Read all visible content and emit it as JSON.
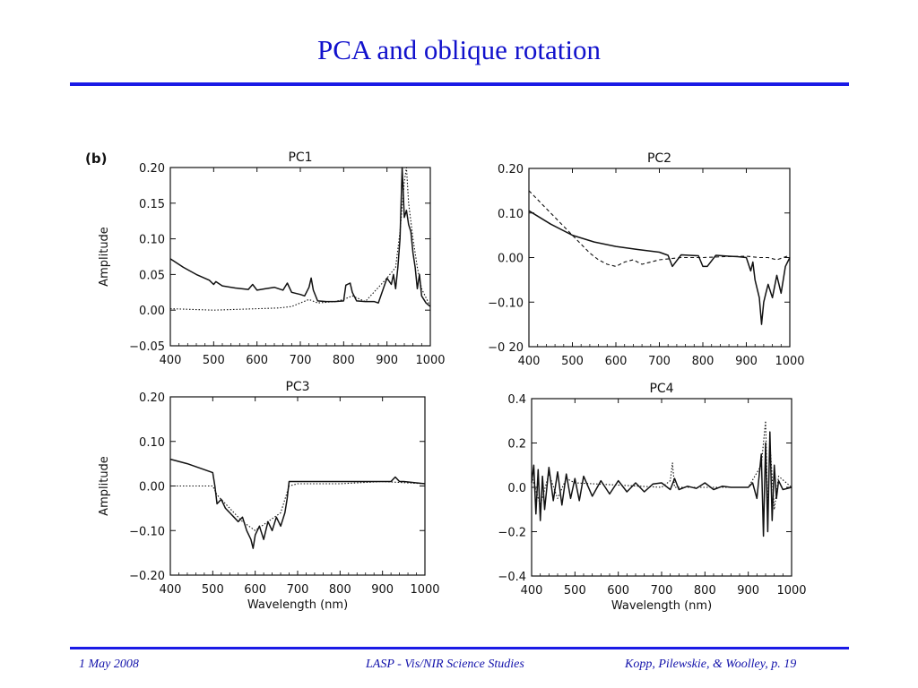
{
  "slide": {
    "title": "PCA and oblique rotation",
    "footer_left": "1 May 2008",
    "footer_center": "LASP - Vis/NIR Science Studies",
    "footer_right": "Kopp, Pilewskie, & Woolley, p. 19"
  },
  "figure": {
    "panel_label": "(b)"
  },
  "colors": {
    "title": "#1111cc",
    "rule": "#1a1ae6",
    "footer": "#1111aa"
  },
  "chart_data": [
    {
      "type": "line",
      "title": "PC1",
      "xlabel": "",
      "ylabel": "Amplitude",
      "xlim": [
        400,
        1000
      ],
      "ylim": [
        -0.05,
        0.2
      ],
      "xticks": [
        400,
        500,
        600,
        700,
        800,
        900,
        1000
      ],
      "yticks": [
        -0.05,
        0.0,
        0.05,
        0.1,
        0.15,
        0.2
      ],
      "ytick_labels": [
        "−0.05",
        "0.00",
        "0.05",
        "0.10",
        "0.15",
        "0.20"
      ],
      "series": [
        {
          "style": "solid",
          "x": [
            400,
            430,
            460,
            490,
            500,
            505,
            520,
            550,
            580,
            590,
            600,
            620,
            640,
            660,
            670,
            680,
            700,
            710,
            720,
            725,
            730,
            740,
            760,
            780,
            800,
            805,
            815,
            820,
            830,
            850,
            870,
            880,
            900,
            910,
            915,
            920,
            925,
            930,
            935,
            940,
            945,
            950,
            955,
            960,
            965,
            970,
            975,
            980,
            990,
            1000
          ],
          "y": [
            0.072,
            0.06,
            0.05,
            0.042,
            0.036,
            0.04,
            0.034,
            0.031,
            0.029,
            0.036,
            0.028,
            0.03,
            0.032,
            0.028,
            0.038,
            0.025,
            0.022,
            0.02,
            0.032,
            0.045,
            0.028,
            0.013,
            0.012,
            0.012,
            0.013,
            0.035,
            0.038,
            0.025,
            0.013,
            0.012,
            0.012,
            0.01,
            0.045,
            0.036,
            0.05,
            0.03,
            0.06,
            0.1,
            0.2,
            0.13,
            0.14,
            0.12,
            0.11,
            0.08,
            0.06,
            0.03,
            0.05,
            0.02,
            0.01,
            0.005
          ]
        },
        {
          "style": "dotted",
          "x": [
            400,
            450,
            500,
            550,
            600,
            650,
            680,
            700,
            720,
            740,
            780,
            800,
            820,
            850,
            900,
            920,
            930,
            940,
            945,
            950,
            960,
            970,
            980,
            1000
          ],
          "y": [
            0.002,
            0.001,
            0.0,
            0.001,
            0.002,
            0.003,
            0.005,
            0.01,
            0.015,
            0.01,
            0.012,
            0.015,
            0.02,
            0.012,
            0.045,
            0.06,
            0.11,
            0.18,
            0.2,
            0.15,
            0.1,
            0.06,
            0.03,
            0.005
          ]
        }
      ]
    },
    {
      "type": "line",
      "title": "PC2",
      "xlabel": "",
      "ylabel": "",
      "xlim": [
        400,
        1000
      ],
      "ylim": [
        -0.2,
        0.2
      ],
      "xticks": [
        400,
        500,
        600,
        700,
        800,
        900,
        1000
      ],
      "yticks": [
        -0.2,
        -0.1,
        0.0,
        0.1,
        0.2
      ],
      "ytick_labels": [
        "−0 20",
        "−0.10",
        "0.00",
        "0.10",
        "0.20"
      ],
      "series": [
        {
          "style": "solid",
          "x": [
            400,
            450,
            500,
            550,
            600,
            650,
            700,
            720,
            730,
            750,
            790,
            800,
            810,
            830,
            860,
            880,
            900,
            910,
            915,
            920,
            930,
            935,
            940,
            945,
            950,
            960,
            970,
            980,
            990,
            1000
          ],
          "y": [
            0.105,
            0.075,
            0.05,
            0.035,
            0.025,
            0.018,
            0.012,
            0.005,
            -0.02,
            0.006,
            0.004,
            -0.02,
            -0.02,
            0.005,
            0.003,
            0.002,
            0.0,
            -0.03,
            -0.01,
            -0.05,
            -0.09,
            -0.15,
            -0.1,
            -0.08,
            -0.06,
            -0.09,
            -0.04,
            -0.08,
            -0.02,
            0.0
          ]
        },
        {
          "style": "dashed",
          "x": [
            400,
            430,
            460,
            500,
            520,
            540,
            560,
            580,
            600,
            620,
            640,
            660,
            700,
            750,
            800,
            850,
            900,
            930,
            950,
            970,
            1000
          ],
          "y": [
            0.15,
            0.12,
            0.09,
            0.05,
            0.03,
            0.01,
            -0.005,
            -0.015,
            -0.02,
            -0.01,
            -0.005,
            -0.015,
            -0.005,
            0.0,
            0.0,
            0.002,
            0.003,
            0.0,
            0.0,
            -0.005,
            0.005
          ]
        }
      ]
    },
    {
      "type": "line",
      "title": "PC3",
      "xlabel": "Wavelength (nm)",
      "ylabel": "Amplitude",
      "xlim": [
        400,
        1000
      ],
      "ylim": [
        -0.2,
        0.2
      ],
      "xticks": [
        400,
        500,
        600,
        700,
        800,
        900,
        1000
      ],
      "yticks": [
        -0.2,
        -0.1,
        0.0,
        0.1,
        0.2
      ],
      "ytick_labels": [
        "−0.20",
        "−0.10",
        "0.00",
        "0.10",
        "0.20"
      ],
      "series": [
        {
          "style": "solid",
          "x": [
            400,
            440,
            470,
            500,
            505,
            510,
            520,
            530,
            540,
            550,
            560,
            570,
            580,
            590,
            595,
            600,
            610,
            620,
            630,
            640,
            650,
            660,
            670,
            675,
            680,
            700,
            750,
            800,
            850,
            900,
            920,
            930,
            940,
            950,
            1000
          ],
          "y": [
            0.06,
            0.05,
            0.04,
            0.03,
            0.0,
            -0.04,
            -0.03,
            -0.05,
            -0.06,
            -0.07,
            -0.08,
            -0.07,
            -0.1,
            -0.12,
            -0.14,
            -0.11,
            -0.09,
            -0.12,
            -0.08,
            -0.1,
            -0.07,
            -0.09,
            -0.06,
            -0.03,
            0.01,
            0.01,
            0.01,
            0.01,
            0.01,
            0.01,
            0.01,
            0.02,
            0.01,
            0.01,
            0.005
          ]
        },
        {
          "style": "dotted",
          "x": [
            400,
            450,
            500,
            510,
            540,
            570,
            600,
            630,
            660,
            680,
            700,
            800,
            900,
            1000
          ],
          "y": [
            0.0,
            0.0,
            0.0,
            -0.02,
            -0.05,
            -0.08,
            -0.1,
            -0.08,
            -0.06,
            0.0,
            0.005,
            0.005,
            0.01,
            0.005
          ]
        }
      ]
    },
    {
      "type": "line",
      "title": "PC4",
      "xlabel": "Wavelength (nm)",
      "ylabel": "",
      "xlim": [
        400,
        1000
      ],
      "ylim": [
        -0.4,
        0.4
      ],
      "xticks": [
        400,
        500,
        600,
        700,
        800,
        900,
        1000
      ],
      "yticks": [
        -0.4,
        -0.2,
        0.0,
        0.2,
        0.4
      ],
      "ytick_labels": [
        "−0.4",
        "−0.2",
        "0.0",
        "0.2",
        "0.4"
      ],
      "series": [
        {
          "style": "solid",
          "x": [
            400,
            405,
            410,
            415,
            420,
            425,
            430,
            440,
            450,
            460,
            470,
            480,
            490,
            500,
            510,
            520,
            540,
            560,
            580,
            600,
            620,
            640,
            660,
            680,
            700,
            720,
            730,
            740,
            760,
            780,
            800,
            820,
            840,
            860,
            880,
            900,
            910,
            920,
            930,
            935,
            940,
            945,
            950,
            955,
            960,
            965,
            970,
            980,
            1000
          ],
          "y": [
            0.02,
            0.1,
            -0.12,
            0.08,
            -0.15,
            0.05,
            -0.1,
            0.09,
            -0.06,
            0.07,
            -0.08,
            0.06,
            -0.05,
            0.04,
            -0.06,
            0.05,
            -0.04,
            0.03,
            -0.03,
            0.03,
            -0.02,
            0.02,
            -0.02,
            0.015,
            0.02,
            -0.01,
            0.04,
            -0.01,
            0.005,
            -0.005,
            0.02,
            -0.01,
            0.005,
            0.0,
            0.0,
            0.0,
            0.02,
            -0.05,
            0.15,
            -0.22,
            0.2,
            -0.2,
            0.25,
            -0.15,
            0.1,
            -0.05,
            0.03,
            -0.01,
            0.0
          ]
        },
        {
          "style": "dotted",
          "x": [
            400,
            420,
            440,
            460,
            480,
            500,
            600,
            700,
            720,
            725,
            730,
            800,
            900,
            930,
            940,
            945,
            950,
            960,
            970,
            1000
          ],
          "y": [
            0.05,
            -0.08,
            0.06,
            -0.05,
            0.04,
            0.02,
            0.01,
            0.0,
            0.03,
            0.11,
            0.0,
            0.0,
            0.0,
            0.1,
            0.3,
            -0.1,
            0.2,
            -0.1,
            0.05,
            0.0
          ]
        }
      ]
    }
  ]
}
